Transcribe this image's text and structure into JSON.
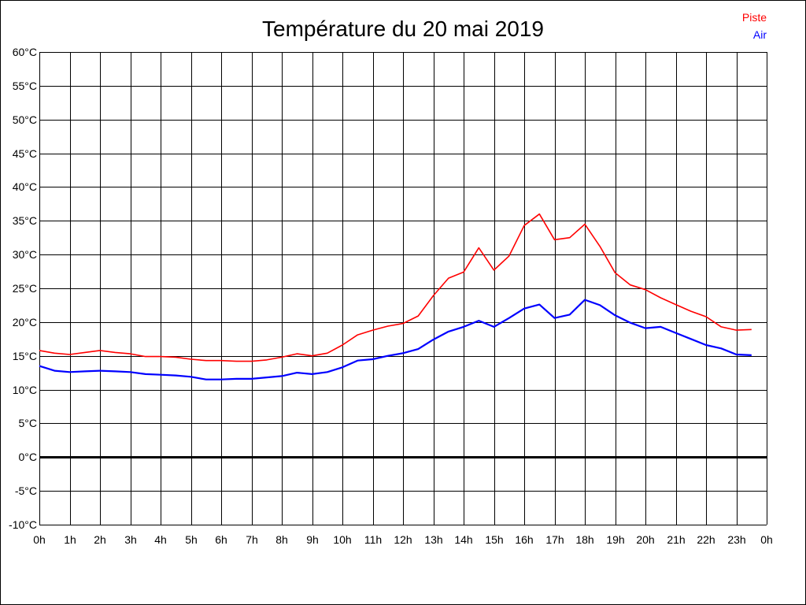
{
  "chart_data": {
    "type": "line",
    "title": "Température du 20 mai 2019",
    "xlabel": "",
    "ylabel": "",
    "xlim": [
      0,
      24
    ],
    "ylim": [
      -10,
      60
    ],
    "grid": true,
    "legend": "top-right",
    "x_ticks": [
      "0h",
      "1h",
      "2h",
      "3h",
      "4h",
      "5h",
      "6h",
      "7h",
      "8h",
      "9h",
      "10h",
      "11h",
      "12h",
      "13h",
      "14h",
      "15h",
      "16h",
      "17h",
      "18h",
      "19h",
      "20h",
      "21h",
      "22h",
      "23h",
      "0h"
    ],
    "y_ticks": [
      "60°C",
      "55°C",
      "50°C",
      "45°C",
      "40°C",
      "35°C",
      "30°C",
      "25°C",
      "20°C",
      "15°C",
      "10°C",
      "5°C",
      "0°C",
      "-5°C",
      "-10°C"
    ],
    "x": [
      0,
      0.5,
      1,
      1.5,
      2,
      2.5,
      3,
      3.5,
      4,
      4.5,
      5,
      5.5,
      6,
      6.5,
      7,
      7.5,
      8,
      8.5,
      9,
      9.5,
      10,
      10.5,
      11,
      11.5,
      12,
      12.5,
      13,
      13.5,
      14,
      14.5,
      15,
      15.5,
      16,
      16.5,
      17,
      17.5,
      18,
      18.5,
      19,
      19.5,
      20,
      20.5,
      21,
      21.5,
      22,
      22.5,
      23,
      23.5
    ],
    "series": [
      {
        "name": "Piste",
        "color": "#ff0000",
        "values": [
          15.8,
          15.4,
          15.2,
          15.5,
          15.8,
          15.5,
          15.3,
          14.9,
          14.9,
          14.8,
          14.5,
          14.3,
          14.3,
          14.2,
          14.2,
          14.4,
          14.8,
          15.3,
          15.0,
          15.4,
          16.6,
          18.1,
          18.8,
          19.4,
          19.8,
          20.9,
          23.9,
          26.5,
          27.4,
          31.0,
          27.7,
          29.8,
          34.3,
          36.0,
          32.2,
          32.5,
          34.5,
          31.2,
          27.3,
          25.5,
          24.8,
          23.6,
          22.6,
          21.6,
          20.8,
          19.3,
          18.8,
          18.9
        ]
      },
      {
        "name": "Air",
        "color": "#0000ff",
        "values": [
          13.5,
          12.8,
          12.6,
          12.7,
          12.8,
          12.7,
          12.6,
          12.3,
          12.2,
          12.1,
          11.9,
          11.5,
          11.5,
          11.6,
          11.6,
          11.8,
          12.0,
          12.5,
          12.3,
          12.6,
          13.3,
          14.3,
          14.5,
          15.0,
          15.4,
          16.0,
          17.4,
          18.6,
          19.3,
          20.2,
          19.3,
          20.6,
          22.0,
          22.6,
          20.6,
          21.1,
          23.3,
          22.5,
          21.0,
          19.9,
          19.1,
          19.3,
          18.4,
          17.5,
          16.6,
          16.1,
          15.2,
          15.1
        ]
      }
    ]
  }
}
